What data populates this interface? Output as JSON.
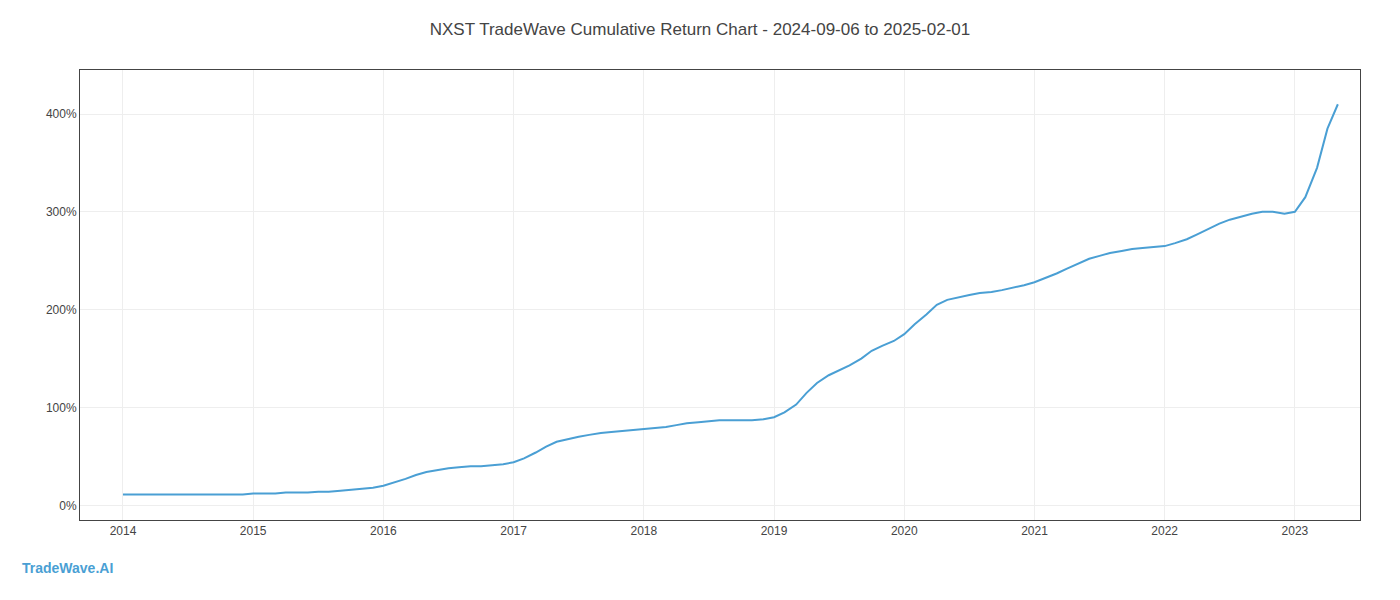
{
  "chart_data": {
    "type": "line",
    "title": "NXST TradeWave Cumulative Return Chart - 2024-09-06 to 2025-02-01",
    "annotations": [
      {
        "text": "TradeWave.AI",
        "color": "#4a9fd4"
      }
    ],
    "color": "#4a9fd4",
    "grid": true,
    "x": [
      2014.0,
      2014.08,
      2014.17,
      2014.25,
      2014.33,
      2014.42,
      2014.5,
      2014.58,
      2014.67,
      2014.75,
      2014.83,
      2014.92,
      2015.0,
      2015.08,
      2015.17,
      2015.25,
      2015.33,
      2015.42,
      2015.5,
      2015.58,
      2015.67,
      2015.75,
      2015.83,
      2015.92,
      2016.0,
      2016.08,
      2016.17,
      2016.25,
      2016.33,
      2016.42,
      2016.5,
      2016.58,
      2016.67,
      2016.75,
      2016.83,
      2016.92,
      2017.0,
      2017.08,
      2017.17,
      2017.25,
      2017.33,
      2017.42,
      2017.5,
      2017.58,
      2017.67,
      2017.75,
      2017.83,
      2017.92,
      2018.0,
      2018.08,
      2018.17,
      2018.25,
      2018.33,
      2018.42,
      2018.5,
      2018.58,
      2018.67,
      2018.75,
      2018.83,
      2018.92,
      2019.0,
      2019.08,
      2019.17,
      2019.25,
      2019.33,
      2019.42,
      2019.5,
      2019.58,
      2019.67,
      2019.75,
      2019.83,
      2019.92,
      2020.0,
      2020.08,
      2020.17,
      2020.25,
      2020.33,
      2020.42,
      2020.5,
      2020.58,
      2020.67,
      2020.75,
      2020.83,
      2020.92,
      2021.0,
      2021.08,
      2021.17,
      2021.25,
      2021.33,
      2021.42,
      2021.5,
      2021.58,
      2021.67,
      2021.75,
      2021.83,
      2021.92,
      2022.0,
      2022.08,
      2022.17,
      2022.25,
      2022.33,
      2022.42,
      2022.5,
      2022.58,
      2022.67,
      2022.75,
      2022.83,
      2022.92,
      2023.0,
      2023.08,
      2023.17,
      2023.25,
      2023.33
    ],
    "values": [
      11,
      11,
      11,
      11,
      11,
      11,
      11,
      11,
      11,
      11,
      11,
      11,
      12,
      12,
      12,
      13,
      13,
      13,
      14,
      14,
      15,
      16,
      17,
      18,
      20,
      23,
      27,
      31,
      34,
      36,
      38,
      39,
      40,
      40,
      41,
      42,
      44,
      48,
      54,
      60,
      65,
      68,
      70,
      72,
      74,
      75,
      76,
      77,
      78,
      79,
      80,
      82,
      84,
      85,
      86,
      87,
      87,
      87,
      87,
      88,
      90,
      95,
      103,
      115,
      125,
      133,
      138,
      143,
      150,
      158,
      163,
      168,
      175,
      185,
      195,
      205,
      210,
      213,
      215,
      217,
      218,
      220,
      222,
      225,
      228,
      232,
      237,
      242,
      247,
      252,
      255,
      258,
      260,
      262,
      263,
      264,
      265,
      268,
      272,
      277,
      282,
      288,
      292,
      295,
      298,
      300,
      300,
      298,
      300,
      315,
      345,
      385,
      410
    ],
    "xlim": [
      2013.67,
      2023.5
    ],
    "xticks": [
      2014,
      2015,
      2016,
      2017,
      2018,
      2019,
      2020,
      2021,
      2022,
      2023
    ],
    "ylim": [
      -15,
      445
    ],
    "yticks": [
      {
        "value": 0,
        "label": "0%"
      },
      {
        "value": 100,
        "label": "100%"
      },
      {
        "value": 200,
        "label": "200%"
      },
      {
        "value": 300,
        "label": "300%"
      },
      {
        "value": 400,
        "label": "400%"
      }
    ]
  }
}
